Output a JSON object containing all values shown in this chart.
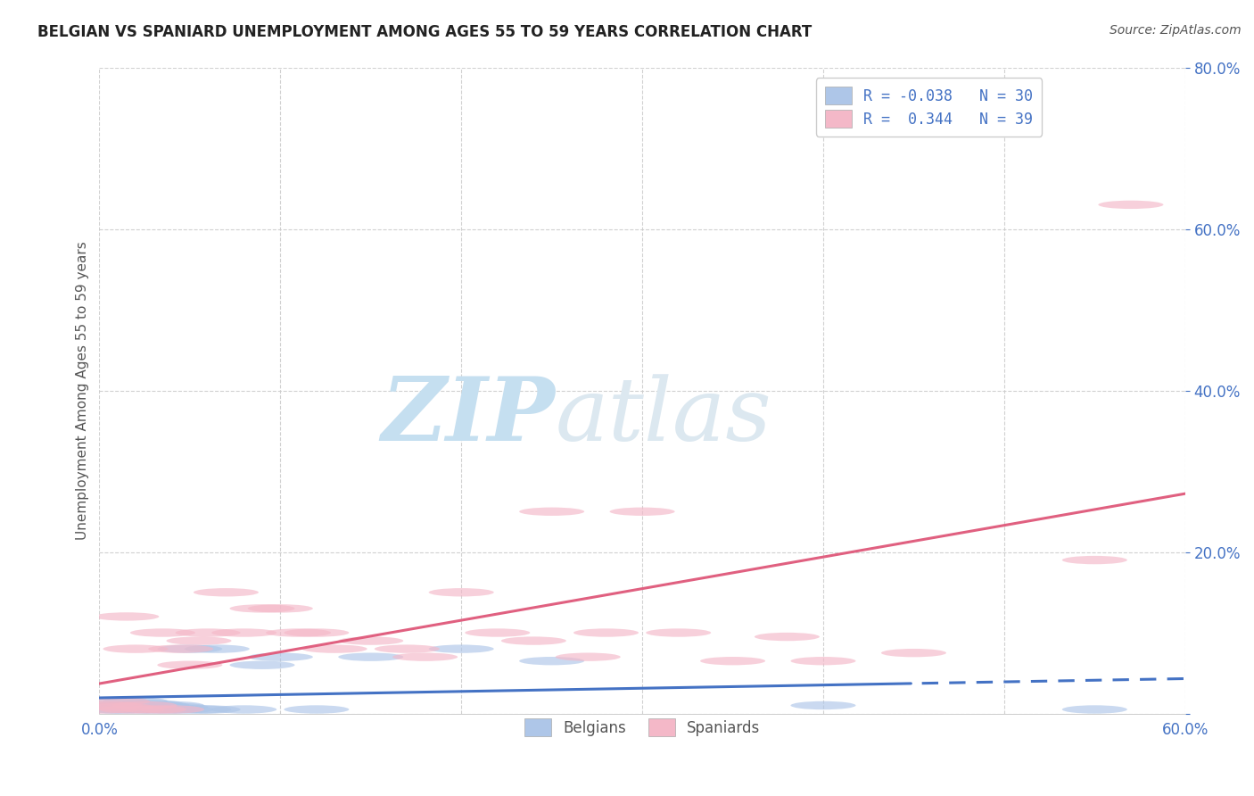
{
  "title": "BELGIAN VS SPANIARD UNEMPLOYMENT AMONG AGES 55 TO 59 YEARS CORRELATION CHART",
  "source": "Source: ZipAtlas.com",
  "ylabel": "Unemployment Among Ages 55 to 59 years",
  "xlim": [
    0.0,
    0.6
  ],
  "ylim": [
    0.0,
    0.8
  ],
  "xticks": [
    0.0,
    0.1,
    0.2,
    0.3,
    0.4,
    0.5,
    0.6
  ],
  "yticks": [
    0.0,
    0.2,
    0.4,
    0.6,
    0.8
  ],
  "ytick_labels": [
    "",
    "20.0%",
    "40.0%",
    "60.0%",
    "80.0%"
  ],
  "xtick_labels": [
    "0.0%",
    "",
    "",
    "",
    "",
    "",
    "60.0%"
  ],
  "belgian_color": "#aec6e8",
  "spaniard_color": "#f4b8c8",
  "belgian_line_color": "#4472c4",
  "spaniard_line_color": "#e06080",
  "R_belgian": -0.038,
  "N_belgian": 30,
  "R_spaniard": 0.344,
  "N_spaniard": 39,
  "watermark_zip": "ZIP",
  "watermark_atlas": "atlas",
  "watermark_color_zip": "#c8dff0",
  "watermark_color_atlas": "#c8dff0",
  "grid_color": "#cccccc",
  "title_color": "#333333",
  "axis_label_color": "#555555",
  "tick_color": "#4472c4",
  "legend_text_color": "#4472c4",
  "belgian_x": [
    0.003,
    0.007,
    0.01,
    0.012,
    0.015,
    0.018,
    0.02,
    0.022,
    0.025,
    0.028,
    0.03,
    0.032,
    0.035,
    0.038,
    0.04,
    0.042,
    0.045,
    0.05,
    0.055,
    0.06,
    0.065,
    0.08,
    0.09,
    0.1,
    0.12,
    0.15,
    0.2,
    0.25,
    0.4,
    0.55
  ],
  "belgian_y": [
    0.01,
    0.005,
    0.015,
    0.005,
    0.01,
    0.008,
    0.015,
    0.005,
    0.008,
    0.012,
    0.005,
    0.01,
    0.008,
    0.005,
    0.01,
    0.008,
    0.005,
    0.08,
    0.005,
    0.005,
    0.08,
    0.005,
    0.06,
    0.07,
    0.005,
    0.07,
    0.08,
    0.065,
    0.01,
    0.005
  ],
  "spaniard_x": [
    0.003,
    0.006,
    0.01,
    0.012,
    0.015,
    0.018,
    0.02,
    0.025,
    0.03,
    0.035,
    0.04,
    0.045,
    0.05,
    0.055,
    0.06,
    0.07,
    0.08,
    0.09,
    0.1,
    0.11,
    0.12,
    0.13,
    0.15,
    0.17,
    0.18,
    0.2,
    0.22,
    0.24,
    0.25,
    0.27,
    0.28,
    0.3,
    0.32,
    0.35,
    0.38,
    0.4,
    0.45,
    0.55,
    0.57
  ],
  "spaniard_y": [
    0.005,
    0.01,
    0.015,
    0.008,
    0.12,
    0.005,
    0.08,
    0.01,
    0.005,
    0.1,
    0.005,
    0.08,
    0.06,
    0.09,
    0.1,
    0.15,
    0.1,
    0.13,
    0.13,
    0.1,
    0.1,
    0.08,
    0.09,
    0.08,
    0.07,
    0.15,
    0.1,
    0.09,
    0.25,
    0.07,
    0.1,
    0.25,
    0.1,
    0.065,
    0.095,
    0.065,
    0.075,
    0.19,
    0.63
  ]
}
